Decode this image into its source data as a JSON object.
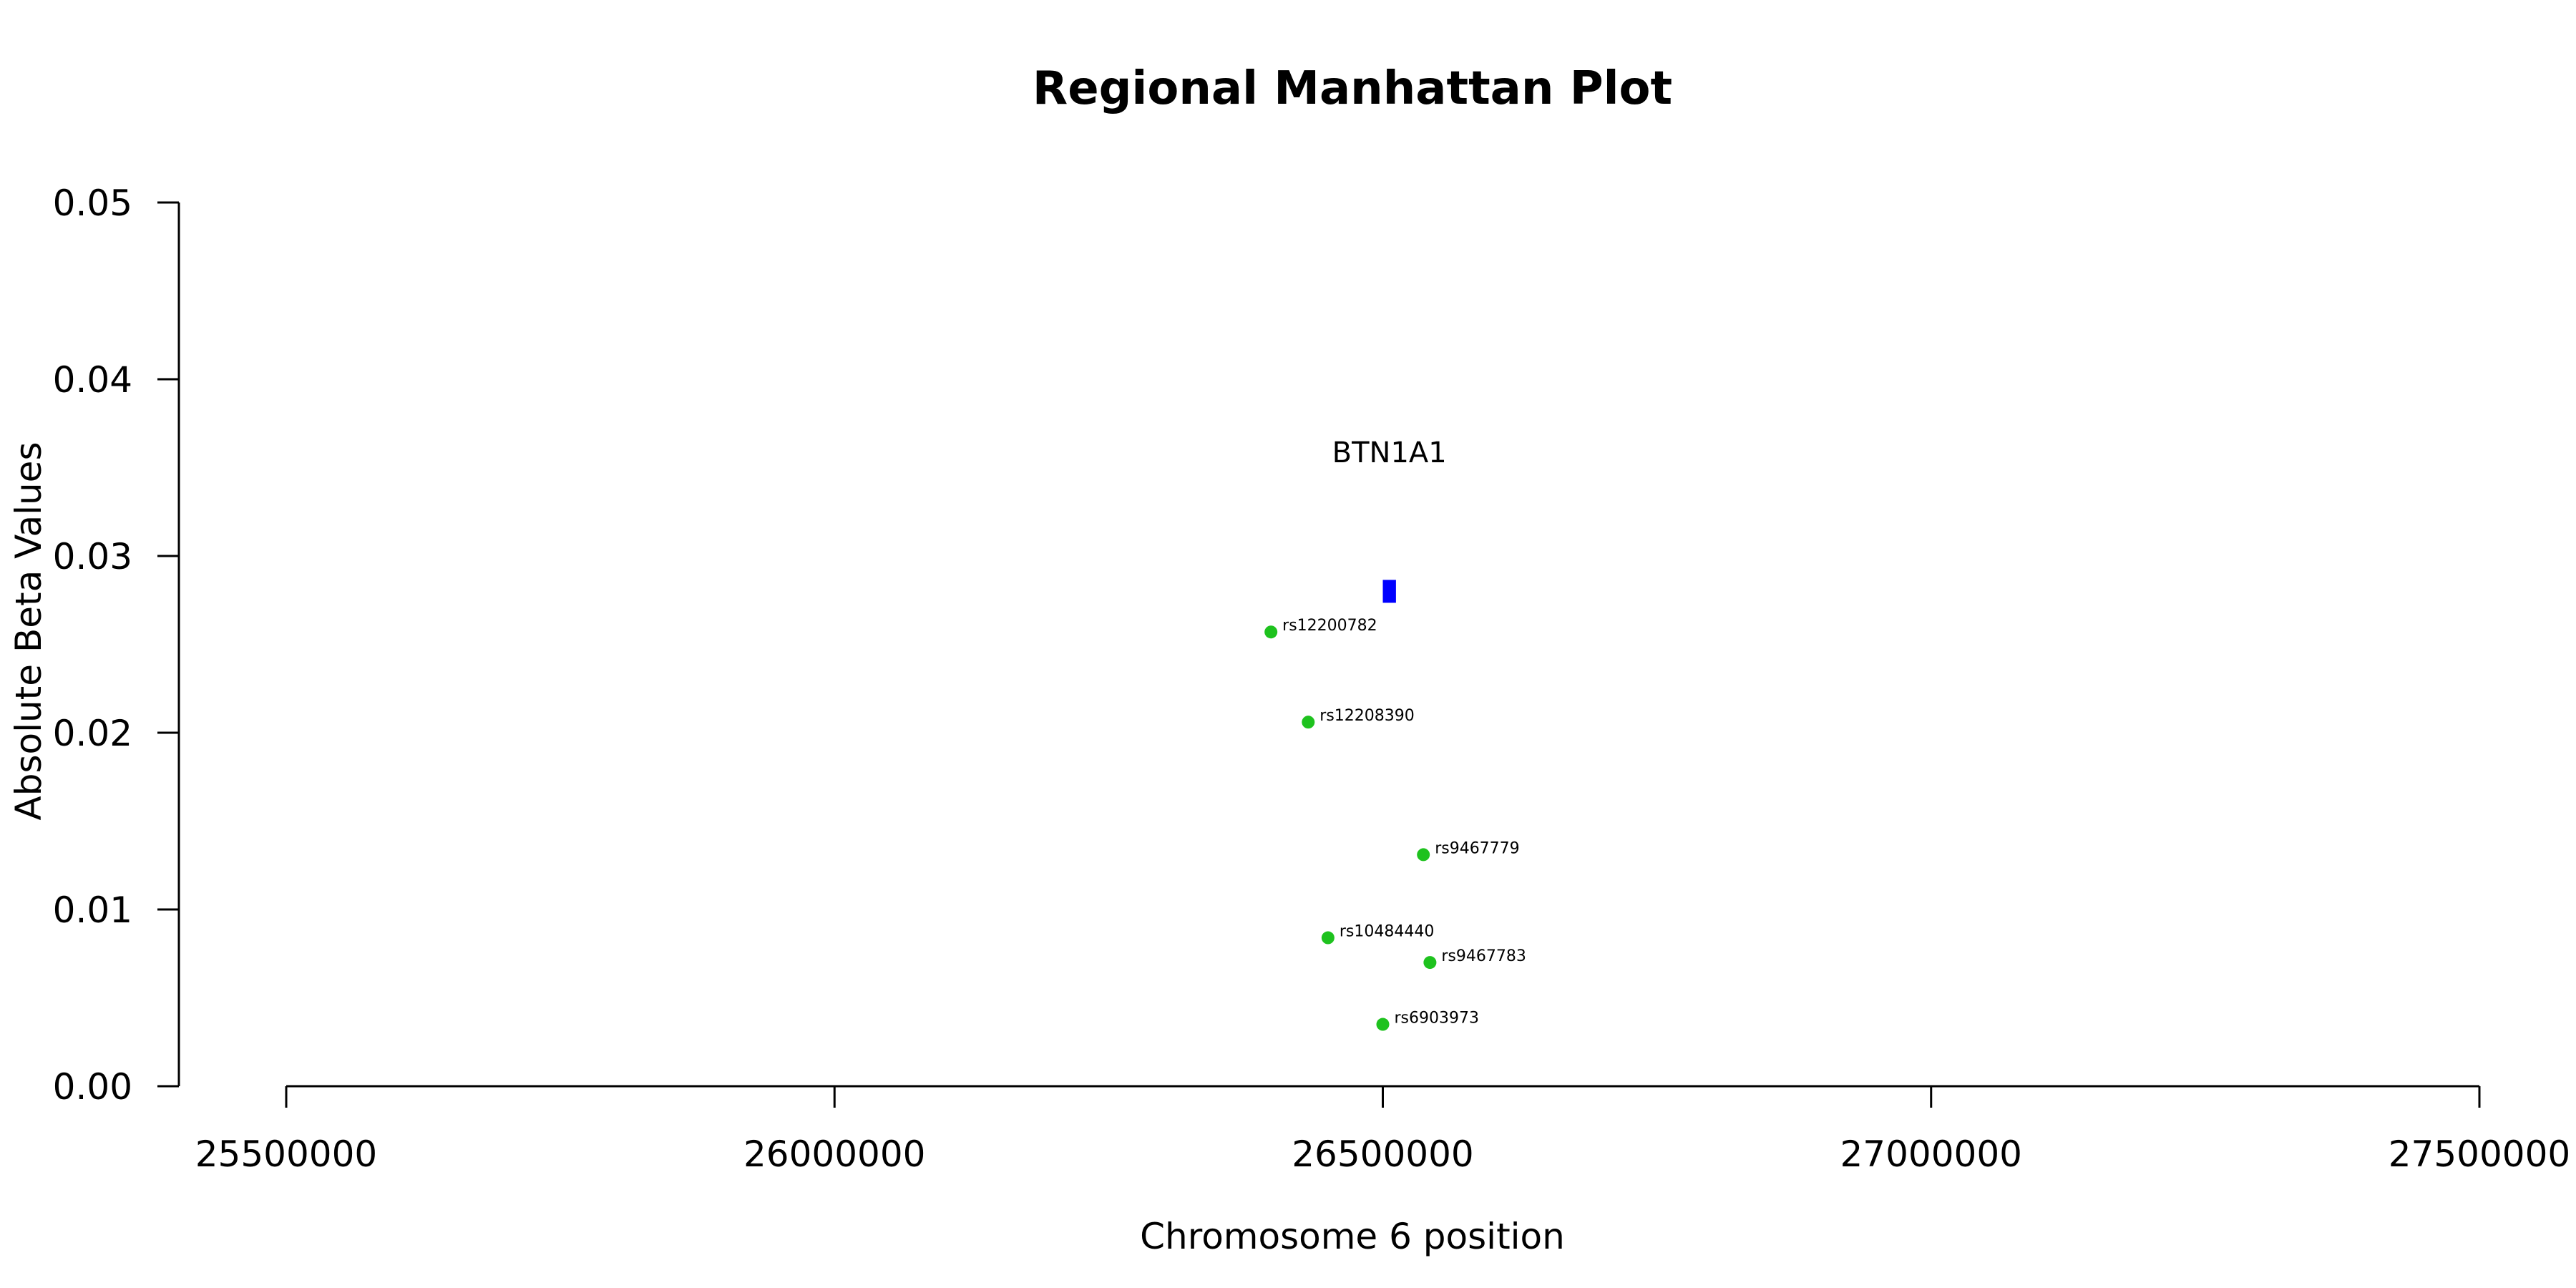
{
  "chart_data": {
    "type": "scatter",
    "title": "Regional Manhattan Plot",
    "xlabel": "Chromosome 6 position",
    "ylabel": "Absolute Beta Values",
    "xlim": [
      25500000,
      27500000
    ],
    "ylim": [
      0,
      0.05
    ],
    "x_ticks": [
      25500000,
      26000000,
      26500000,
      27000000,
      27500000
    ],
    "y_ticks": [
      "0.00",
      "0.01",
      "0.02",
      "0.03",
      "0.04",
      "0.05"
    ],
    "grid": false,
    "point_color": "#1ec21e",
    "gene_color": "#0000ff",
    "points": [
      {
        "id": "rs12200782",
        "x": 26398000,
        "y": 0.0257
      },
      {
        "id": "rs12208390",
        "x": 26432000,
        "y": 0.0206
      },
      {
        "id": "rs9467779",
        "x": 26537000,
        "y": 0.0131
      },
      {
        "id": "rs10484440",
        "x": 26450000,
        "y": 0.0084
      },
      {
        "id": "rs9467783",
        "x": 26543000,
        "y": 0.007
      },
      {
        "id": "rs6903973",
        "x": 26500000,
        "y": 0.0035
      }
    ],
    "genes": [
      {
        "name": "BTN1A1",
        "start": 26500000,
        "end": 26512000,
        "y": 0.028
      }
    ]
  }
}
